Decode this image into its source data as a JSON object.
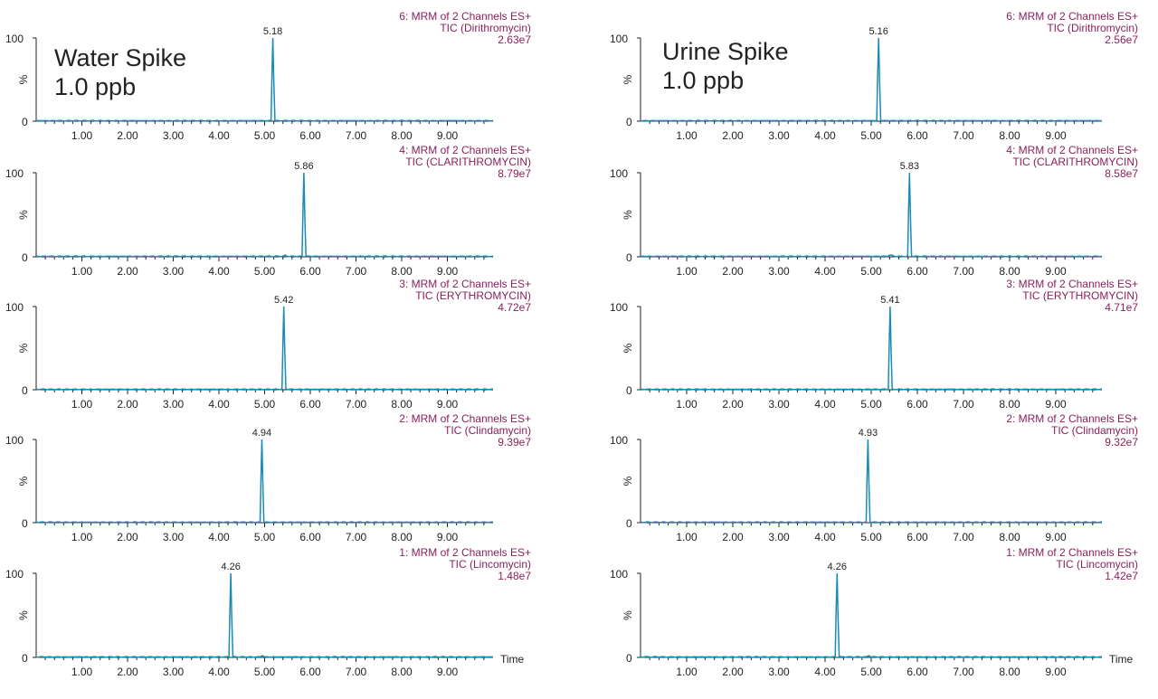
{
  "colors": {
    "trace": "#1b8ab5",
    "axis": "#222222",
    "annotation": "#8b1f5c",
    "baseline": "#1b8ab5"
  },
  "axis_labels": {
    "y_unit": "%",
    "y_ticks": [
      "100",
      "0"
    ],
    "x_label": "Time"
  },
  "samples": [
    {
      "title_lines": [
        "Water Spike",
        "1.0 ppb"
      ]
    },
    {
      "title_lines": [
        "Urine Spike",
        "1.0 ppb"
      ]
    }
  ],
  "chart_data": [
    {
      "type": "line",
      "sample": "Water Spike 1.0 ppb",
      "channel": "6: MRM of 2 Channels ES+",
      "compound": "TIC (Dirithromycin)",
      "intensity": "2.63e7",
      "peak_label": "5.18",
      "peak_rt": 5.18,
      "x_ticks": [
        1,
        2,
        3,
        4,
        5,
        6,
        7,
        8,
        9
      ],
      "x_tick_labels": [
        "1.00",
        "2.00",
        "3.00",
        "4.00",
        "5.00",
        "6.00",
        "7.00",
        "8.00",
        "9.00"
      ],
      "xlim": [
        0,
        10
      ],
      "ylim": [
        0,
        100
      ],
      "minor_peaks": []
    },
    {
      "type": "line",
      "sample": "Water Spike 1.0 ppb",
      "channel": "4: MRM of 2 Channels ES+",
      "compound": "TIC (CLARITHROMYCIN)",
      "intensity": "8.79e7",
      "peak_label": "5.86",
      "peak_rt": 5.86,
      "x_ticks": [
        1,
        2,
        3,
        4,
        5,
        6,
        7,
        8,
        9
      ],
      "x_tick_labels": [
        "1.00",
        "2.00",
        "3.00",
        "4.00",
        "5.00",
        "6.00",
        "7.00",
        "8.00",
        "9.00"
      ],
      "xlim": [
        0,
        10
      ],
      "ylim": [
        0,
        100
      ],
      "minor_peaks": [
        {
          "x": 5.45,
          "y": 2
        }
      ]
    },
    {
      "type": "line",
      "sample": "Water Spike 1.0 ppb",
      "channel": "3: MRM of 2 Channels ES+",
      "compound": "TIC (ERYTHROMYCIN)",
      "intensity": "4.72e7",
      "peak_label": "5.42",
      "peak_rt": 5.42,
      "x_ticks": [
        1,
        2,
        3,
        4,
        5,
        6,
        7,
        8,
        9
      ],
      "x_tick_labels": [
        "1.00",
        "2.00",
        "3.00",
        "4.00",
        "5.00",
        "6.00",
        "7.00",
        "8.00",
        "9.00"
      ],
      "xlim": [
        0,
        10
      ],
      "ylim": [
        0,
        100
      ],
      "minor_peaks": []
    },
    {
      "type": "line",
      "sample": "Water Spike 1.0 ppb",
      "channel": "2: MRM of 2 Channels ES+",
      "compound": "TIC (Clindamycin)",
      "intensity": "9.39e7",
      "peak_label": "4.94",
      "peak_rt": 4.94,
      "x_ticks": [
        1,
        2,
        3,
        4,
        5,
        6,
        7,
        8,
        9
      ],
      "x_tick_labels": [
        "1.00",
        "2.00",
        "3.00",
        "4.00",
        "5.00",
        "6.00",
        "7.00",
        "8.00",
        "9.00"
      ],
      "xlim": [
        0,
        10
      ],
      "ylim": [
        0,
        100
      ],
      "minor_peaks": []
    },
    {
      "type": "line",
      "sample": "Water Spike 1.0 ppb",
      "channel": "1: MRM of 2 Channels ES+",
      "compound": "TIC (Lincomycin)",
      "intensity": "1.48e7",
      "peak_label": "4.26",
      "peak_rt": 4.26,
      "x_ticks": [
        1,
        2,
        3,
        4,
        5,
        6,
        7,
        8,
        9
      ],
      "x_tick_labels": [
        "1.00",
        "2.00",
        "3.00",
        "4.00",
        "5.00",
        "6.00",
        "7.00",
        "8.00",
        "9.00"
      ],
      "xlim": [
        0,
        10
      ],
      "ylim": [
        0,
        100
      ],
      "minor_peaks": [
        {
          "x": 4.95,
          "y": 2
        }
      ]
    },
    {
      "type": "line",
      "sample": "Urine Spike 1.0 ppb",
      "channel": "6: MRM of 2 Channels ES+",
      "compound": "TIC (Dirithromycin)",
      "intensity": "2.56e7",
      "peak_label": "5.16",
      "peak_rt": 5.16,
      "x_ticks": [
        1,
        2,
        3,
        4,
        5,
        6,
        7,
        8,
        9
      ],
      "x_tick_labels": [
        "1.00",
        "2.00",
        "3.00",
        "4.00",
        "5.00",
        "6.00",
        "7.00",
        "8.00",
        "9.00"
      ],
      "xlim": [
        0,
        10
      ],
      "ylim": [
        0,
        100
      ],
      "minor_peaks": []
    },
    {
      "type": "line",
      "sample": "Urine Spike 1.0 ppb",
      "channel": "4: MRM of 2 Channels ES+",
      "compound": "TIC (CLARITHROMYCIN)",
      "intensity": "8.58e7",
      "peak_label": "5.83",
      "peak_rt": 5.83,
      "x_ticks": [
        1,
        2,
        3,
        4,
        5,
        6,
        7,
        8,
        9
      ],
      "x_tick_labels": [
        "1.00",
        "2.00",
        "3.00",
        "4.00",
        "5.00",
        "6.00",
        "7.00",
        "8.00",
        "9.00"
      ],
      "xlim": [
        0,
        10
      ],
      "ylim": [
        0,
        100
      ],
      "minor_peaks": [
        {
          "x": 5.42,
          "y": 2
        }
      ]
    },
    {
      "type": "line",
      "sample": "Urine Spike 1.0 ppb",
      "channel": "3: MRM of 2 Channels ES+",
      "compound": "TIC (ERYTHROMYCIN)",
      "intensity": "4.71e7",
      "peak_label": "5.41",
      "peak_rt": 5.41,
      "x_ticks": [
        1,
        2,
        3,
        4,
        5,
        6,
        7,
        8,
        9
      ],
      "x_tick_labels": [
        "1.00",
        "2.00",
        "3.00",
        "4.00",
        "5.00",
        "6.00",
        "7.00",
        "8.00",
        "9.00"
      ],
      "xlim": [
        0,
        10
      ],
      "ylim": [
        0,
        100
      ],
      "minor_peaks": []
    },
    {
      "type": "line",
      "sample": "Urine Spike 1.0 ppb",
      "channel": "2: MRM of 2 Channels ES+",
      "compound": "TIC (Clindamycin)",
      "intensity": "9.32e7",
      "peak_label": "4.93",
      "peak_rt": 4.93,
      "x_ticks": [
        1,
        2,
        3,
        4,
        5,
        6,
        7,
        8,
        9
      ],
      "x_tick_labels": [
        "1.00",
        "2.00",
        "3.00",
        "4.00",
        "5.00",
        "6.00",
        "7.00",
        "8.00",
        "9.00"
      ],
      "xlim": [
        0,
        10
      ],
      "ylim": [
        0,
        100
      ],
      "minor_peaks": []
    },
    {
      "type": "line",
      "sample": "Urine Spike 1.0 ppb",
      "channel": "1: MRM of 2 Channels ES+",
      "compound": "TIC (Lincomycin)",
      "intensity": "1.42e7",
      "peak_label": "4.26",
      "peak_rt": 4.26,
      "x_ticks": [
        1,
        2,
        3,
        4,
        5,
        6,
        7,
        8,
        9
      ],
      "x_tick_labels": [
        "1.00",
        "2.00",
        "3.00",
        "4.00",
        "5.00",
        "6.00",
        "7.00",
        "8.00",
        "9.00"
      ],
      "xlim": [
        0,
        10
      ],
      "ylim": [
        0,
        100
      ],
      "minor_peaks": [
        {
          "x": 4.95,
          "y": 2
        }
      ]
    }
  ]
}
